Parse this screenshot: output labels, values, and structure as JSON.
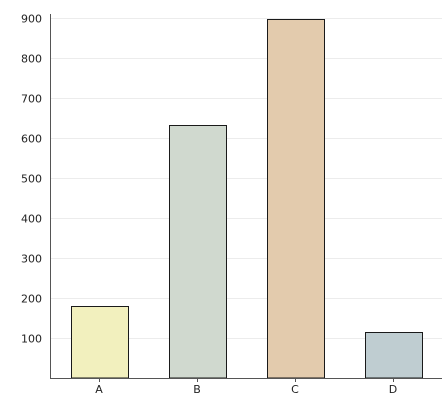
{
  "chart_data": {
    "type": "bar",
    "title": "",
    "xlabel": "",
    "ylabel": "",
    "categories": [
      "A",
      "B",
      "C",
      "D"
    ],
    "values": [
      180,
      632,
      897,
      115
    ],
    "colors": [
      "#f2f0be",
      "#d0d9cf",
      "#e3cbad",
      "#bfcdd1"
    ],
    "bar_border_color": "#1a1a1a",
    "ylim": [
      0,
      900
    ],
    "yticks": [
      100,
      200,
      300,
      400,
      500,
      600,
      700,
      800,
      900
    ],
    "ytick_labels": [
      "100",
      "200",
      "300",
      "400",
      "500",
      "600",
      "700",
      "800",
      "900"
    ],
    "grid": true,
    "grid_color": "#ececec",
    "legend": false
  }
}
